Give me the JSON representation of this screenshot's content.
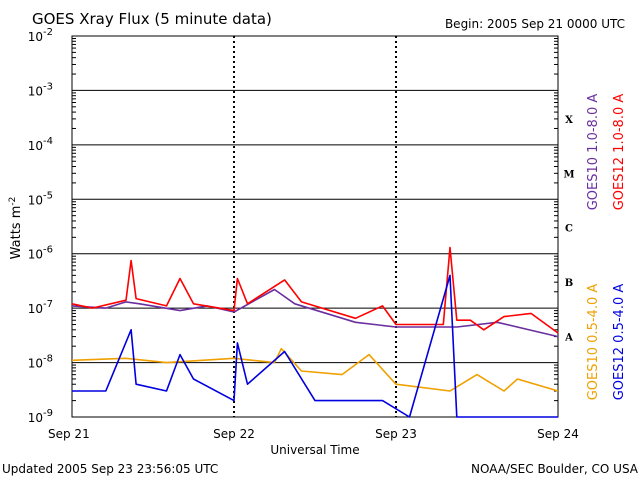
{
  "header": {
    "title": "GOES Xray Flux (5 minute data)",
    "begin": "Begin:  2005 Sep 21 0000 UTC"
  },
  "footer": {
    "updated": "Updated 2005 Sep 23 23:56:05 UTC",
    "credit": "NOAA/SEC Boulder, CO USA"
  },
  "chart_data": {
    "type": "line",
    "title": "GOES Xray Flux (5 minute data)",
    "xlabel": "Universal Time",
    "ylabel": "Watts m",
    "ylabel_exponent": "-2",
    "y_scale": "log",
    "ylim": [
      1e-09,
      0.01
    ],
    "xlim": [
      "2005-09-21",
      "2005-09-24"
    ],
    "x_ticks": [
      "Sep 21",
      "Sep 22",
      "Sep 23",
      "Sep 24"
    ],
    "y_ticks": [
      {
        "value": 0.01,
        "exp": "-2"
      },
      {
        "value": 0.001,
        "exp": "-3"
      },
      {
        "value": 0.0001,
        "exp": "-4"
      },
      {
        "value": 1e-05,
        "exp": "-5"
      },
      {
        "value": 1e-06,
        "exp": "-6"
      },
      {
        "value": 1e-07,
        "exp": "-7"
      },
      {
        "value": 1e-08,
        "exp": "-8"
      },
      {
        "value": 1e-09,
        "exp": "-9"
      }
    ],
    "tick_base": "10",
    "flare_classes": [
      {
        "label": "X",
        "value": 0.0003
      },
      {
        "label": "M",
        "value": 3e-05
      },
      {
        "label": "C",
        "value": 3e-06
      },
      {
        "label": "B",
        "value": 3e-07
      },
      {
        "label": "A",
        "value": 3e-08
      }
    ],
    "grid": "horizontal lines at each decade",
    "legend": "right side, vertical",
    "series": [
      {
        "name": "GOES10 1.0-8.0 A",
        "color": "#6a2fa0",
        "points": [
          [
            "2005-09-21T00:00",
            1.1e-07
          ],
          [
            "2005-09-21T05:00",
            1e-07
          ],
          [
            "2005-09-21T08:00",
            1.3e-07
          ],
          [
            "2005-09-21T10:00",
            1.2e-07
          ],
          [
            "2005-09-21T16:00",
            9e-08
          ],
          [
            "2005-09-21T20:00",
            1.1e-07
          ],
          [
            "2005-09-22T00:00",
            8.5e-08
          ],
          [
            "2005-09-22T06:00",
            2.2e-07
          ],
          [
            "2005-09-22T09:00",
            1.2e-07
          ],
          [
            "2005-09-22T18:00",
            5.5e-08
          ],
          [
            "2005-09-23T00:00",
            4.5e-08
          ],
          [
            "2005-09-23T09:00",
            4.5e-08
          ],
          [
            "2005-09-23T15:00",
            5.5e-08
          ],
          [
            "2005-09-24T00:00",
            3e-08
          ]
        ]
      },
      {
        "name": "GOES12 1.0-8.0 A",
        "color": "#ff0000",
        "points": [
          [
            "2005-09-21T00:00",
            1.2e-07
          ],
          [
            "2005-09-21T03:00",
            1e-07
          ],
          [
            "2005-09-21T08:00",
            1.4e-07
          ],
          [
            "2005-09-21T08:45",
            7.5e-07
          ],
          [
            "2005-09-21T09:30",
            1.5e-07
          ],
          [
            "2005-09-21T14:00",
            1.1e-07
          ],
          [
            "2005-09-21T16:00",
            3.5e-07
          ],
          [
            "2005-09-21T18:00",
            1.2e-07
          ],
          [
            "2005-09-22T00:00",
            9e-08
          ],
          [
            "2005-09-22T00:30",
            3.5e-07
          ],
          [
            "2005-09-22T02:00",
            1.2e-07
          ],
          [
            "2005-09-22T07:30",
            3.3e-07
          ],
          [
            "2005-09-22T10:00",
            1.3e-07
          ],
          [
            "2005-09-22T18:00",
            6.5e-08
          ],
          [
            "2005-09-22T22:00",
            1.1e-07
          ],
          [
            "2005-09-23T00:00",
            5e-08
          ],
          [
            "2005-09-23T07:00",
            5e-08
          ],
          [
            "2005-09-23T08:00",
            1.3e-06
          ],
          [
            "2005-09-23T09:00",
            6e-08
          ],
          [
            "2005-09-23T11:00",
            6e-08
          ],
          [
            "2005-09-23T13:00",
            4e-08
          ],
          [
            "2005-09-23T16:00",
            7e-08
          ],
          [
            "2005-09-23T20:00",
            8e-08
          ],
          [
            "2005-09-24T00:00",
            3.5e-08
          ]
        ]
      },
      {
        "name": "GOES10 0.5-4.0 A",
        "color": "#f0a000",
        "points": [
          [
            "2005-09-21T00:00",
            1.1e-08
          ],
          [
            "2005-09-21T08:00",
            1.2e-08
          ],
          [
            "2005-09-21T14:00",
            1e-08
          ],
          [
            "2005-09-22T00:00",
            1.2e-08
          ],
          [
            "2005-09-22T06:00",
            1e-08
          ],
          [
            "2005-09-22T07:00",
            1.8e-08
          ],
          [
            "2005-09-22T10:00",
            7e-09
          ],
          [
            "2005-09-22T16:00",
            6e-09
          ],
          [
            "2005-09-22T20:00",
            1.4e-08
          ],
          [
            "2005-09-23T00:00",
            4e-09
          ],
          [
            "2005-09-23T08:00",
            3e-09
          ],
          [
            "2005-09-23T12:00",
            6e-09
          ],
          [
            "2005-09-23T16:00",
            3e-09
          ],
          [
            "2005-09-23T18:00",
            5e-09
          ],
          [
            "2005-09-24T00:00",
            3e-09
          ]
        ]
      },
      {
        "name": "GOES12 0.5-4.0 A",
        "color": "#0000e0",
        "points": [
          [
            "2005-09-21T00:00",
            3e-09
          ],
          [
            "2005-09-21T05:00",
            3e-09
          ],
          [
            "2005-09-21T08:45",
            4e-08
          ],
          [
            "2005-09-21T09:30",
            4e-09
          ],
          [
            "2005-09-21T14:00",
            3e-09
          ],
          [
            "2005-09-21T16:00",
            1.4e-08
          ],
          [
            "2005-09-21T18:00",
            5e-09
          ],
          [
            "2005-09-22T00:00",
            2e-09
          ],
          [
            "2005-09-22T00:30",
            2.3e-08
          ],
          [
            "2005-09-22T02:00",
            4e-09
          ],
          [
            "2005-09-22T07:30",
            1.6e-08
          ],
          [
            "2005-09-22T12:00",
            2e-09
          ],
          [
            "2005-09-22T22:00",
            2e-09
          ],
          [
            "2005-09-23T02:00",
            1e-09
          ],
          [
            "2005-09-23T08:00",
            4e-07
          ],
          [
            "2005-09-23T09:00",
            1e-09
          ],
          [
            "2005-09-24T00:00",
            1e-09
          ]
        ]
      }
    ]
  }
}
